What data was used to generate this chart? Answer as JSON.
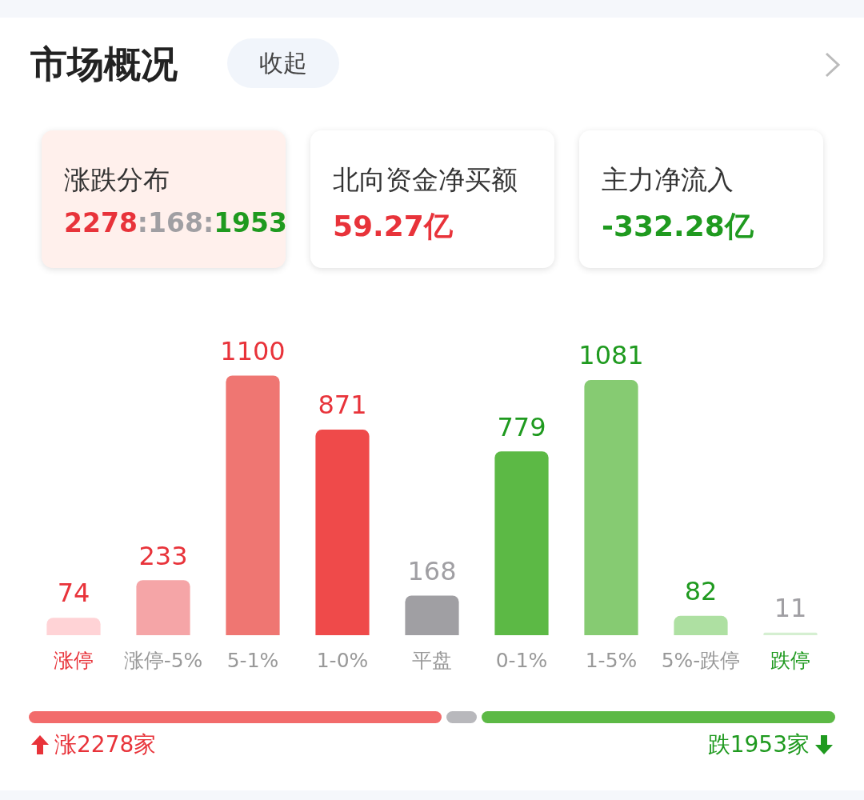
{
  "chart_data": {
    "type": "bar",
    "title": "市场概况",
    "categories": [
      "涨停",
      "涨停-5%",
      "5-1%",
      "1-0%",
      "平盘",
      "0-1%",
      "1-5%",
      "5%-跌停",
      "跌停"
    ],
    "values": [
      74,
      233,
      1100,
      871,
      168,
      779,
      1081,
      82,
      11
    ],
    "colors": [
      "#ffd3d6",
      "#f5a5a7",
      "#ef7672",
      "#ef4a4a",
      "#a09fa3",
      "#5cb945",
      "#86cb72",
      "#aee0a2",
      "#d5efd1"
    ],
    "data_labels": true,
    "grid": false,
    "legend": false,
    "tick_labels": "x",
    "annotations": [
      "收起",
      "涨跌分布",
      "2278:168:1953",
      "北向资金净买额",
      "59.27亿",
      "主力净流入",
      "-332.28亿",
      "涨2278家",
      "跌1953家"
    ]
  }
}
